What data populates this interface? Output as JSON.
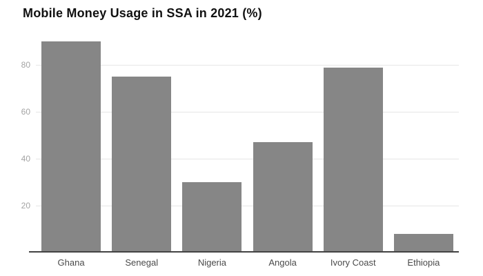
{
  "page": {
    "background": "#ffffff"
  },
  "chart_data": {
    "type": "bar",
    "title": "Mobile Money Usage in SSA in 2021 (%)",
    "categories": [
      "Ghana",
      "Senegal",
      "Nigeria",
      "Angola",
      "Ivory Coast",
      "Ethiopia"
    ],
    "values": [
      90,
      75,
      30,
      47,
      79,
      8
    ],
    "xlabel": "",
    "ylabel": "",
    "ylim": [
      0,
      93
    ],
    "yticks": [
      20,
      40,
      60,
      80
    ],
    "grid": true,
    "legend": "none",
    "colors": {
      "bar": "#868686",
      "gridline": "#e6e6e6",
      "axis_line": "#424242",
      "tick_label": "#a3a3a3",
      "category_label": "#4a4a4a",
      "title": "#111111",
      "background": "#ffffff"
    }
  }
}
